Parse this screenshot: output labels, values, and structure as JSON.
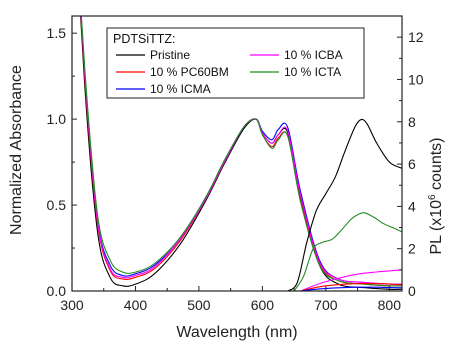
{
  "chart_data": {
    "type": "line",
    "xlabel": "Wavelength (nm)",
    "ylabel_left": "Normalized Absorbance",
    "ylabel_right_prefix": "PL (x10",
    "ylabel_right_exp": "6",
    "ylabel_right_suffix": " counts)",
    "xlim": [
      300,
      820
    ],
    "ylim_left": [
      0,
      1.6
    ],
    "ylim_right": [
      0,
      13
    ],
    "x_ticks": [
      300,
      400,
      500,
      600,
      700,
      800
    ],
    "x_tick_labels": [
      "300",
      "400",
      "500",
      "600",
      "700",
      "800"
    ],
    "y_left_ticks": [
      0,
      0.5,
      1.0,
      1.5
    ],
    "y_left_tick_labels": [
      "0.0",
      "0.5",
      "1.0",
      "1.5"
    ],
    "y_right_ticks": [
      0,
      2,
      4,
      6,
      8,
      10,
      12
    ],
    "y_right_tick_labels": [
      "0",
      "2",
      "4",
      "6",
      "8",
      "10",
      "12"
    ],
    "legend": {
      "title": "PDTSiTTZ:",
      "placement": "top-center",
      "entries": [
        {
          "label": "Pristine",
          "color": "#000000"
        },
        {
          "label": "10 % ICBA",
          "color": "#ff00ff"
        },
        {
          "label": "10 % PC60BM",
          "color": "#ff0000"
        },
        {
          "label": "10 % ICTA",
          "color": "#228b22"
        },
        {
          "label": "10 % ICMA",
          "color": "#0000ff"
        }
      ]
    },
    "absorbance_series": [
      {
        "name": "Pristine",
        "color": "#000000",
        "x": [
          300,
          320,
          340,
          360,
          380,
          400,
          430,
          470,
          510,
          540,
          570,
          590,
          600,
          615,
          625,
          640,
          660,
          690,
          720,
          760,
          800,
          820
        ],
        "y": [
          2.5,
          1.2,
          0.35,
          0.08,
          0.03,
          0.04,
          0.1,
          0.27,
          0.52,
          0.74,
          0.94,
          1.0,
          0.92,
          0.86,
          0.91,
          0.92,
          0.55,
          0.15,
          0.04,
          0.02,
          0.01,
          0.01
        ]
      },
      {
        "name": "10 % PC60BM",
        "color": "#ff0000",
        "x": [
          300,
          320,
          340,
          360,
          380,
          400,
          430,
          470,
          510,
          540,
          570,
          590,
          600,
          615,
          625,
          640,
          660,
          690,
          720,
          760,
          800,
          820
        ],
        "y": [
          2.5,
          1.25,
          0.4,
          0.12,
          0.07,
          0.08,
          0.13,
          0.29,
          0.53,
          0.75,
          0.95,
          1.0,
          0.91,
          0.84,
          0.89,
          0.9,
          0.53,
          0.16,
          0.06,
          0.04,
          0.03,
          0.03
        ]
      },
      {
        "name": "10 % ICMA",
        "color": "#0000ff",
        "x": [
          300,
          320,
          340,
          360,
          380,
          400,
          430,
          470,
          510,
          540,
          570,
          590,
          600,
          615,
          625,
          640,
          660,
          690,
          720,
          760,
          800,
          820
        ],
        "y": [
          2.5,
          1.28,
          0.42,
          0.15,
          0.09,
          0.1,
          0.15,
          0.3,
          0.54,
          0.75,
          0.95,
          1.0,
          0.93,
          0.88,
          0.94,
          0.95,
          0.58,
          0.18,
          0.07,
          0.05,
          0.04,
          0.04
        ]
      },
      {
        "name": "10 % ICBA",
        "color": "#ff00ff",
        "x": [
          300,
          320,
          340,
          360,
          380,
          400,
          430,
          470,
          510,
          540,
          570,
          590,
          600,
          615,
          625,
          640,
          660,
          690,
          720,
          760,
          800,
          820
        ],
        "y": [
          2.5,
          1.27,
          0.41,
          0.13,
          0.08,
          0.09,
          0.14,
          0.3,
          0.53,
          0.75,
          0.95,
          1.0,
          0.92,
          0.86,
          0.91,
          0.93,
          0.56,
          0.17,
          0.07,
          0.05,
          0.04,
          0.04
        ]
      },
      {
        "name": "10 % ICTA",
        "color": "#228b22",
        "x": [
          300,
          320,
          340,
          360,
          380,
          400,
          430,
          470,
          510,
          540,
          570,
          590,
          600,
          615,
          625,
          640,
          660,
          690,
          720,
          760,
          800,
          820
        ],
        "y": [
          2.5,
          1.3,
          0.45,
          0.18,
          0.11,
          0.11,
          0.16,
          0.31,
          0.54,
          0.76,
          0.95,
          1.0,
          0.91,
          0.83,
          0.88,
          0.9,
          0.52,
          0.15,
          0.06,
          0.04,
          0.03,
          0.03
        ]
      }
    ],
    "pl_series": [
      {
        "name": "Pristine",
        "color": "#000000",
        "x": [
          640,
          655,
          670,
          685,
          700,
          715,
          730,
          745,
          755,
          765,
          780,
          800,
          820
        ],
        "y": [
          0.0,
          0.4,
          2.3,
          3.8,
          4.6,
          5.4,
          6.6,
          7.7,
          8.1,
          7.9,
          7.0,
          6.1,
          5.8
        ]
      },
      {
        "name": "10 % ICTA",
        "color": "#228b22",
        "x": [
          650,
          665,
          680,
          695,
          710,
          725,
          740,
          750,
          760,
          775,
          790,
          805,
          820
        ],
        "y": [
          0.0,
          0.7,
          2.0,
          2.3,
          2.45,
          2.9,
          3.4,
          3.6,
          3.7,
          3.5,
          3.2,
          3.0,
          2.8
        ]
      },
      {
        "name": "10 % ICBA",
        "color": "#ff00ff",
        "x": [
          660,
          690,
          720,
          750,
          780,
          800,
          820
        ],
        "y": [
          0.0,
          0.35,
          0.6,
          0.8,
          0.9,
          0.95,
          1.0
        ]
      },
      {
        "name": "10 % PC60BM",
        "color": "#ff0000",
        "x": [
          660,
          690,
          720,
          750,
          780,
          800,
          820
        ],
        "y": [
          0.0,
          0.2,
          0.3,
          0.35,
          0.35,
          0.33,
          0.3
        ]
      },
      {
        "name": "10 % ICMA",
        "color": "#0000ff",
        "x": [
          660,
          690,
          720,
          750,
          780,
          800,
          820
        ],
        "y": [
          0.0,
          0.1,
          0.15,
          0.18,
          0.18,
          0.16,
          0.15
        ]
      }
    ]
  }
}
